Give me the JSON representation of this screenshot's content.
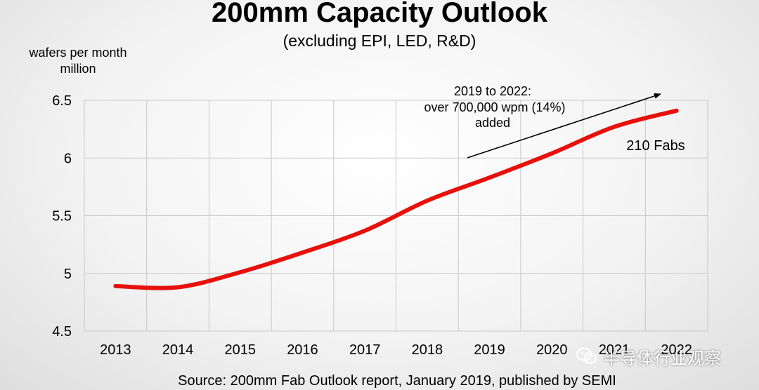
{
  "chart_data": {
    "type": "line",
    "title": "200mm Capacity Outlook",
    "subtitle": "(excluding EPI, LED, R&D)",
    "ylabel_line1": "wafers per month",
    "ylabel_line2": "million",
    "xlabel": "",
    "categories": [
      "2013",
      "2014",
      "2015",
      "2016",
      "2017",
      "2018",
      "2019",
      "2020",
      "2021",
      "2022"
    ],
    "series": [
      {
        "name": "200mm capacity",
        "color": "#e8100b",
        "values": [
          4.89,
          4.88,
          5.01,
          5.18,
          5.37,
          5.63,
          5.83,
          6.04,
          6.27,
          6.41
        ]
      }
    ],
    "ylim": [
      4.5,
      6.5
    ],
    "yticks": [
      "6.5",
      "6",
      "5.5",
      "5",
      "4.5"
    ],
    "ytick_values": [
      6.5,
      6.0,
      5.5,
      5.0,
      4.5
    ],
    "grid": true,
    "annotation_lines": [
      "2019 to 2022:",
      "over 700,000 wpm  (14%)",
      "added"
    ],
    "end_label": "210 Fabs",
    "source": "Source: 200mm Fab Outlook report, January 2019, published by SEMI"
  },
  "watermark": {
    "text": "半导体行业观察",
    "icon": "wechat-icon"
  }
}
